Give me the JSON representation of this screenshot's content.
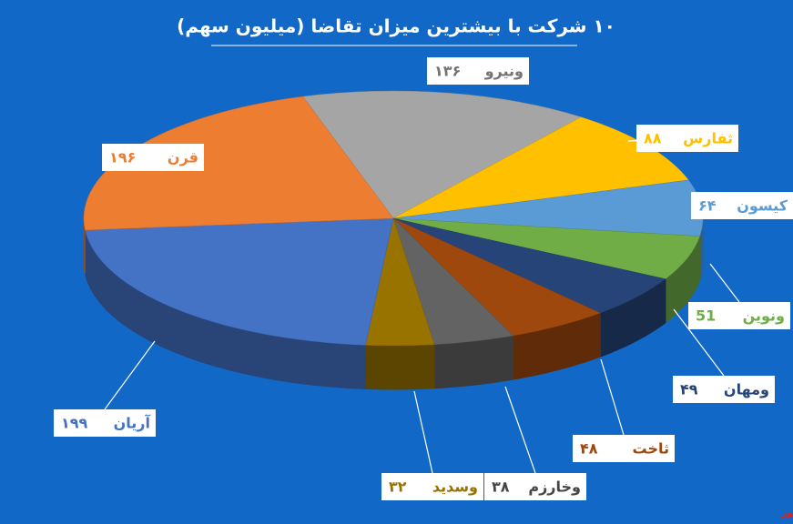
{
  "chart_data": {
    "type": "pie",
    "title": "۱۰ شرکت با بیشترین میزان تقاضا (میلیون سهم)",
    "categories": [
      "ونیرو",
      "ثفارس",
      "کیسون",
      "ونوین",
      "ومهان",
      "ثاخت",
      "وخارزم",
      "وسدید",
      "آریان",
      "قرن"
    ],
    "values": [
      136,
      88,
      64,
      51,
      49,
      48,
      38,
      32,
      199,
      196
    ],
    "value_labels": [
      "۱۳۶",
      "۸۸",
      "۶۴",
      "51",
      "۴۹",
      "۴۸",
      "۳۸",
      "۳۲",
      "۱۹۹",
      "۱۹۶"
    ],
    "colors": [
      "#a5a5a5",
      "#ffc000",
      "#5b9bd5",
      "#70ad47",
      "#264478",
      "#9e480e",
      "#636363",
      "#997300",
      "#4472c4",
      "#ed7d31"
    ],
    "watermark": "بورس نیوز"
  }
}
